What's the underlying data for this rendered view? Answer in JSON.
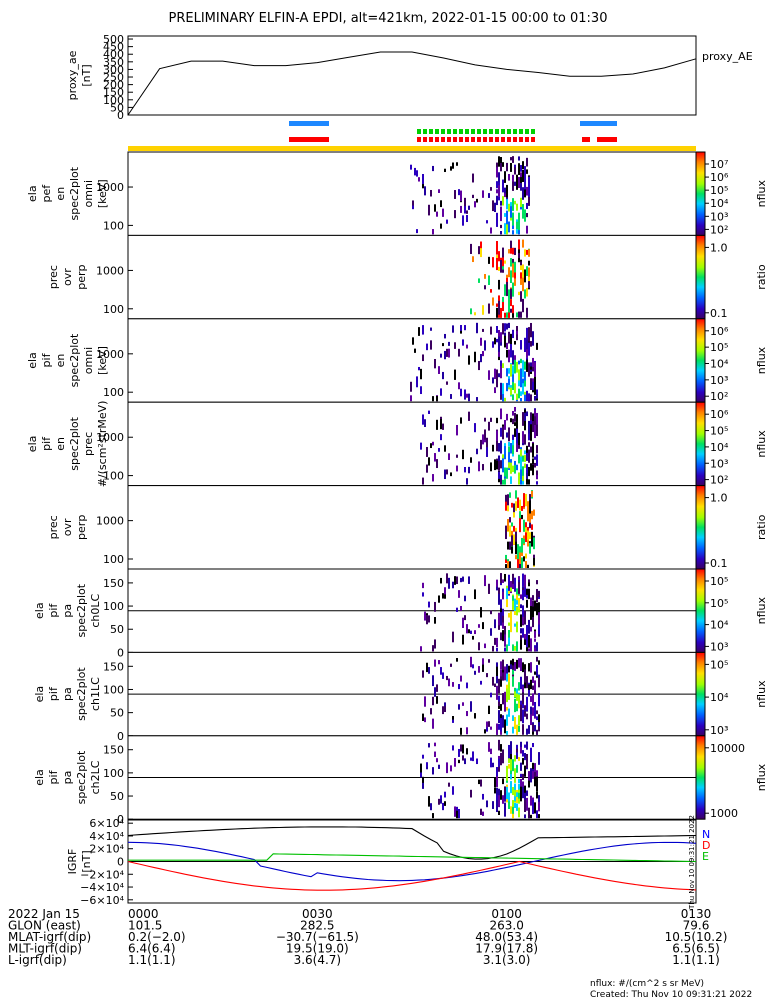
{
  "title": "PRELIMINARY ELFIN-A EPDI, alt=421km, 2022-01-15 00:00 to 01:30",
  "chart_data": {
    "type": "spectrogram-stack",
    "time_range": [
      "2022-01-15 00:00",
      "2022-01-15 01:30"
    ],
    "ae_panel": {
      "ylabel_lines": [
        "proxy_ae",
        "[nT]"
      ],
      "yticks": [
        "500",
        "450",
        "400",
        "350",
        "300",
        "250",
        "200",
        "150",
        "100",
        "50",
        "0"
      ],
      "legend": "proxy_AE",
      "x_min": [
        0,
        5,
        10,
        15,
        20,
        25,
        30,
        35,
        40,
        45,
        50,
        55,
        60,
        65,
        70,
        75,
        80,
        85,
        90
      ],
      "values": [
        0,
        305,
        355,
        355,
        325,
        325,
        345,
        380,
        415,
        415,
        375,
        330,
        300,
        280,
        255,
        255,
        270,
        310,
        370
      ]
    },
    "panels": [
      {
        "ylabel_lines": [
          "ela",
          "pef",
          "en",
          "spec2plot",
          "omni",
          "[keV]"
        ],
        "yticks": [
          "1000",
          "100"
        ],
        "cbar": {
          "ticks": [
            "10⁷",
            "10⁶",
            "10⁵",
            "10⁴",
            "10³",
            "10²"
          ],
          "label": "nflux"
        }
      },
      {
        "ylabel_lines": [
          "prec",
          "ovr",
          "perp"
        ],
        "yticks": [
          "1000",
          "100"
        ],
        "cbar": {
          "ticks": [
            "1.0",
            "0.1"
          ],
          "label": "ratio"
        }
      },
      {
        "ylabel_lines": [
          "ela",
          "pif",
          "en",
          "spec2plot",
          "omni",
          "[keV]"
        ],
        "yticks": [
          "1000",
          "100"
        ],
        "cbar": {
          "ticks": [
            "10⁶",
            "10⁵",
            "10⁴",
            "10³",
            "10²"
          ],
          "label": "nflux"
        }
      },
      {
        "ylabel_lines": [
          "ela",
          "pif",
          "en",
          "spec2plot",
          "prec",
          "#/(scm²strMeV)"
        ],
        "yticks": [
          "1000",
          "100"
        ],
        "cbar": {
          "ticks": [
            "10⁶",
            "10⁵",
            "10⁴",
            "10³",
            "10²"
          ],
          "label": "nflux"
        }
      },
      {
        "ylabel_lines": [
          "prec",
          "ovr",
          "perp"
        ],
        "yticks": [
          "1000",
          "100"
        ],
        "cbar": {
          "ticks": [
            "1.0",
            "0.1"
          ],
          "label": "ratio"
        }
      },
      {
        "ylabel_lines": [
          "ela",
          "pif",
          "pa",
          "spec2plot",
          "ch0LC"
        ],
        "yticks": [
          "150",
          "100",
          "50",
          "0"
        ],
        "cbar": {
          "ticks": [
            "10⁵",
            "10⁵",
            "10⁴",
            "10³"
          ],
          "label": "nflux"
        }
      },
      {
        "ylabel_lines": [
          "ela",
          "pif",
          "pa",
          "spec2plot",
          "ch1LC"
        ],
        "yticks": [
          "150",
          "100",
          "50",
          "0"
        ],
        "cbar": {
          "ticks": [
            "10⁵",
            "10⁴",
            "10³"
          ],
          "label": "nflux"
        }
      },
      {
        "ylabel_lines": [
          "ela",
          "pif",
          "pa",
          "spec2plot",
          "ch2LC"
        ],
        "yticks": [
          "150",
          "100",
          "50",
          "0"
        ],
        "cbar": {
          "ticks": [
            "10000",
            "1000"
          ],
          "label": "nflux"
        }
      }
    ],
    "igrf_panel": {
      "ylabel_lines": [
        "IGRF",
        "[nT]"
      ],
      "yticks": [
        "6×10⁴",
        "4×10⁴",
        "2×10⁴",
        "0",
        "−2×10⁴",
        "−4×10⁴",
        "−6×10⁴"
      ],
      "legend": [
        "N",
        "D",
        "E"
      ],
      "legend_colors": [
        "#0000ff",
        "#ff0000",
        "#00c000"
      ]
    },
    "side_stamp": "Thu Nov 10 09:31:21 2022"
  },
  "footer": {
    "rows": [
      [
        "2022 Jan 15",
        "0000",
        "0030",
        "0100",
        "0130"
      ],
      [
        "GLON (east)",
        "101.5",
        "282.5",
        "263.0",
        "79.6"
      ],
      [
        "MLAT-igrf(dip)",
        "0.2(−2.0)",
        "−30.7(−61.5)",
        "48.0(53.4)",
        "10.5(10.2)"
      ],
      [
        "MLT-igrf(dip)",
        "6.4(6.4)",
        "19.5(19.0)",
        "17.9(17.8)",
        "6.5(6.5)"
      ],
      [
        "L-igrf(dip)",
        "1.1(1.1)",
        "3.6(4.7)",
        "3.1(3.0)",
        "1.1(1.1)"
      ]
    ],
    "note1": "nflux: #/(cm^2 s sr MeV)",
    "note2": "Created: Thu Nov 10 09:31:21 2022"
  }
}
